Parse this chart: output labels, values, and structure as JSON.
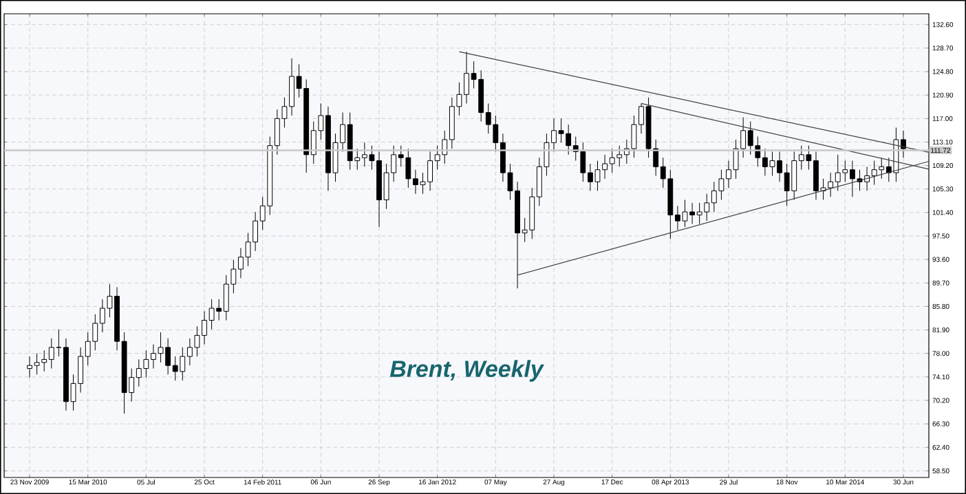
{
  "chart_data": {
    "type": "candlestick",
    "title": "Brent, Weekly",
    "x": [
      "2009-11-23",
      "2009-12-07",
      "2009-12-21",
      "2010-01-04",
      "2010-01-18",
      "2010-02-01",
      "2010-02-15",
      "2010-03-01",
      "2010-03-15",
      "2010-03-29",
      "2010-04-12",
      "2010-04-26",
      "2010-05-10",
      "2010-05-24",
      "2010-06-07",
      "2010-06-21",
      "2010-07-05",
      "2010-07-19",
      "2010-08-02",
      "2010-08-16",
      "2010-08-30",
      "2010-09-13",
      "2010-09-27",
      "2010-10-11",
      "2010-10-25",
      "2010-11-08",
      "2010-11-22",
      "2010-12-06",
      "2010-12-20",
      "2011-01-03",
      "2011-01-17",
      "2011-01-31",
      "2011-02-14",
      "2011-02-28",
      "2011-03-14",
      "2011-03-28",
      "2011-04-11",
      "2011-04-25",
      "2011-05-09",
      "2011-05-23",
      "2011-06-06",
      "2011-06-20",
      "2011-07-04",
      "2011-07-18",
      "2011-08-01",
      "2011-08-15",
      "2011-08-29",
      "2011-09-12",
      "2011-09-26",
      "2011-10-10",
      "2011-10-24",
      "2011-11-07",
      "2011-11-21",
      "2011-12-05",
      "2011-12-19",
      "2012-01-02",
      "2012-01-16",
      "2012-01-30",
      "2012-02-13",
      "2012-02-27",
      "2012-03-12",
      "2012-03-26",
      "2012-04-09",
      "2012-04-23",
      "2012-05-07",
      "2012-05-21",
      "2012-06-04",
      "2012-06-18",
      "2012-07-02",
      "2012-07-16",
      "2012-07-30",
      "2012-08-13",
      "2012-08-27",
      "2012-09-10",
      "2012-09-24",
      "2012-10-08",
      "2012-10-22",
      "2012-11-05",
      "2012-11-19",
      "2012-12-03",
      "2012-12-17",
      "2012-12-31",
      "2013-01-14",
      "2013-01-28",
      "2013-02-11",
      "2013-02-25",
      "2013-03-11",
      "2013-03-25",
      "2013-04-08",
      "2013-04-22",
      "2013-05-06",
      "2013-05-20",
      "2013-06-03",
      "2013-06-17",
      "2013-07-01",
      "2013-07-15",
      "2013-07-29",
      "2013-08-12",
      "2013-08-26",
      "2013-09-09",
      "2013-09-23",
      "2013-10-07",
      "2013-10-21",
      "2013-11-04",
      "2013-11-18",
      "2013-12-02",
      "2013-12-16",
      "2013-12-30",
      "2014-01-13",
      "2014-01-27",
      "2014-02-10",
      "2014-02-24",
      "2014-03-10",
      "2014-03-24",
      "2014-04-07",
      "2014-04-21",
      "2014-05-05",
      "2014-05-19",
      "2014-06-02",
      "2014-06-16",
      "2014-06-30"
    ],
    "ohlc": [
      [
        75.5,
        77.5,
        74,
        76
      ],
      [
        76,
        78,
        74.5,
        76.5
      ],
      [
        76.5,
        78.5,
        75,
        77
      ],
      [
        77,
        80.5,
        75.5,
        79
      ],
      [
        79,
        82,
        77.5,
        79
      ],
      [
        79,
        80.5,
        68.5,
        70
      ],
      [
        70,
        74.5,
        68.5,
        73
      ],
      [
        73,
        79,
        71.5,
        77.5
      ],
      [
        77.5,
        81.5,
        76,
        80
      ],
      [
        80,
        84.5,
        78.5,
        83
      ],
      [
        83,
        87,
        81.5,
        85.5
      ],
      [
        85.5,
        89.5,
        84,
        87.5
      ],
      [
        87.5,
        89,
        78.5,
        80
      ],
      [
        80,
        81.5,
        68,
        71.5
      ],
      [
        71.5,
        75.5,
        70,
        74
      ],
      [
        74,
        77,
        72.5,
        75.5
      ],
      [
        75.5,
        78.5,
        74,
        77
      ],
      [
        77,
        79.5,
        75.5,
        78
      ],
      [
        78,
        81.5,
        76.5,
        79
      ],
      [
        79,
        80.5,
        74.5,
        76
      ],
      [
        76,
        77.5,
        73.5,
        75
      ],
      [
        75,
        79,
        73.5,
        77.5
      ],
      [
        77.5,
        80.5,
        76,
        79
      ],
      [
        79,
        82.5,
        77.5,
        81
      ],
      [
        81,
        85,
        79.5,
        83.5
      ],
      [
        83.5,
        87,
        82,
        85.5
      ],
      [
        85.5,
        87,
        83.5,
        85
      ],
      [
        85,
        91,
        83.5,
        89.5
      ],
      [
        89.5,
        93.5,
        88,
        92
      ],
      [
        92,
        95.5,
        90.5,
        94
      ],
      [
        94,
        98,
        92.5,
        96.5
      ],
      [
        96.5,
        101.5,
        95,
        100
      ],
      [
        100,
        104,
        98.5,
        102.5
      ],
      [
        102.5,
        114,
        101,
        112.5
      ],
      [
        112.5,
        118.5,
        111,
        117
      ],
      [
        117,
        120.5,
        115.5,
        119
      ],
      [
        119,
        127,
        117.5,
        124
      ],
      [
        124,
        126,
        120.5,
        122
      ],
      [
        122,
        123.5,
        108,
        111
      ],
      [
        111,
        116.5,
        109.5,
        115
      ],
      [
        115,
        119.5,
        113.5,
        117.5
      ],
      [
        117.5,
        119,
        105,
        108
      ],
      [
        108,
        114.5,
        106.5,
        113
      ],
      [
        113,
        118,
        111.5,
        116
      ],
      [
        116,
        118,
        108.5,
        110
      ],
      [
        110,
        112,
        108.5,
        110.5
      ],
      [
        110.5,
        113,
        109,
        111
      ],
      [
        111,
        112.5,
        108.5,
        110
      ],
      [
        110,
        111.5,
        99,
        103.5
      ],
      [
        103.5,
        109.5,
        102,
        108
      ],
      [
        108,
        112.5,
        106.5,
        111
      ],
      [
        111,
        112.5,
        109,
        110.5
      ],
      [
        110.5,
        112,
        105.5,
        107
      ],
      [
        107,
        108.5,
        104.5,
        106
      ],
      [
        106,
        108,
        104.5,
        106.5
      ],
      [
        106.5,
        111.5,
        105,
        110
      ],
      [
        110,
        112.5,
        108.5,
        111
      ],
      [
        111,
        115,
        109.5,
        113.5
      ],
      [
        113.5,
        120.5,
        112,
        119
      ],
      [
        119,
        123,
        117.5,
        121
      ],
      [
        121,
        128.1,
        119.5,
        124.5
      ],
      [
        124.5,
        126.5,
        122,
        123.5
      ],
      [
        123.5,
        125,
        116.5,
        118
      ],
      [
        118,
        119.5,
        114.5,
        116
      ],
      [
        116,
        117.5,
        111.5,
        113
      ],
      [
        113,
        114.5,
        106.5,
        108
      ],
      [
        108,
        109.5,
        103.5,
        105
      ],
      [
        105,
        106.5,
        88.8,
        98
      ],
      [
        98,
        100.5,
        96.5,
        98.5
      ],
      [
        98.5,
        105.5,
        97,
        104
      ],
      [
        104,
        110.5,
        102.5,
        109
      ],
      [
        109,
        114.5,
        107.5,
        113
      ],
      [
        113,
        117,
        111.5,
        115
      ],
      [
        115,
        117,
        113,
        114.5
      ],
      [
        114.5,
        116,
        111,
        112.5
      ],
      [
        112.5,
        114,
        110,
        111.5
      ],
      [
        111.5,
        113,
        106.5,
        108
      ],
      [
        108,
        109.5,
        105,
        106.5
      ],
      [
        106.5,
        110,
        105,
        108.5
      ],
      [
        108.5,
        111,
        107,
        109.5
      ],
      [
        109.5,
        112,
        108,
        110.5
      ],
      [
        110.5,
        112.5,
        109,
        111
      ],
      [
        111,
        113.5,
        109.5,
        112
      ],
      [
        112,
        117.5,
        110.5,
        116
      ],
      [
        116,
        119.5,
        114.5,
        119
      ],
      [
        119,
        120.5,
        110.5,
        112
      ],
      [
        112,
        113.5,
        107.5,
        109
      ],
      [
        109,
        110.5,
        105.5,
        107
      ],
      [
        107,
        108.5,
        97,
        101
      ],
      [
        101,
        102.5,
        98.5,
        100
      ],
      [
        100,
        103.5,
        99,
        101.5
      ],
      [
        101.5,
        103,
        99.5,
        101
      ],
      [
        101,
        103,
        99.5,
        101.5
      ],
      [
        101.5,
        104.5,
        100,
        103
      ],
      [
        103,
        106.5,
        101.5,
        105
      ],
      [
        105,
        108.5,
        103.5,
        107
      ],
      [
        107,
        110,
        105.5,
        108.5
      ],
      [
        108.5,
        113.5,
        107,
        112
      ],
      [
        112,
        117.2,
        110.5,
        115
      ],
      [
        115,
        116.5,
        111,
        112.5
      ],
      [
        112.5,
        114,
        109,
        110.5
      ],
      [
        110.5,
        112,
        107.5,
        109
      ],
      [
        109,
        111.5,
        107.5,
        110
      ],
      [
        110,
        111.5,
        106.5,
        108
      ],
      [
        108,
        109.5,
        102.5,
        105
      ],
      [
        105,
        111.5,
        103.5,
        110
      ],
      [
        110,
        112.5,
        108.5,
        111
      ],
      [
        111,
        112.5,
        108.5,
        110
      ],
      [
        110,
        111.5,
        103.5,
        105
      ],
      [
        105,
        107,
        103.5,
        105.5
      ],
      [
        105.5,
        108,
        104,
        106.5
      ],
      [
        106.5,
        111,
        105,
        108
      ],
      [
        108,
        110,
        106.5,
        108.5
      ],
      [
        108.5,
        110,
        104,
        107
      ],
      [
        107,
        108.5,
        105,
        106.5
      ],
      [
        106.5,
        109,
        105,
        107.5
      ],
      [
        107.5,
        110,
        106,
        108.5
      ],
      [
        108.5,
        110.5,
        107,
        109
      ],
      [
        109,
        110.5,
        106.5,
        108
      ],
      [
        108,
        115.5,
        106.5,
        113.5
      ],
      [
        113.5,
        115,
        110.5,
        112
      ]
    ],
    "series": [
      {
        "type": "line",
        "color": "#404040",
        "x": [
          "2012-02-27",
          "2014-08-18"
        ],
        "values": [
          128.1,
          111.4
        ]
      },
      {
        "type": "line",
        "color": "#404040",
        "x": [
          "2013-02-11",
          "2014-08-18"
        ],
        "values": [
          119.5,
          108.6
        ]
      },
      {
        "type": "line",
        "color": "#404040",
        "x": [
          "2012-06-18",
          "2014-08-18"
        ],
        "values": [
          91.0,
          109.9
        ]
      }
    ],
    "ref_lines": [
      {
        "axis": "y",
        "value": 111.72,
        "label": "111.72",
        "color": "#c8c8c8"
      }
    ],
    "xlim": [
      "2009-10-05",
      "2014-08-18"
    ],
    "xticks": [
      {
        "value": "2009-11-23",
        "label": "23 Nov 2009"
      },
      {
        "value": "2010-03-15",
        "label": "15 Mar 2010"
      },
      {
        "value": "2010-07-05",
        "label": "05 Jul"
      },
      {
        "value": "2010-10-25",
        "label": "25 Oct"
      },
      {
        "value": "2011-02-14",
        "label": "14 Feb 2011"
      },
      {
        "value": "2011-06-06",
        "label": "06 Jun"
      },
      {
        "value": "2011-09-26",
        "label": "26 Sep"
      },
      {
        "value": "2012-01-16",
        "label": "16 Jan 2012"
      },
      {
        "value": "2012-05-07",
        "label": "07 May"
      },
      {
        "value": "2012-08-27",
        "label": "27 Aug"
      },
      {
        "value": "2012-12-17",
        "label": "17 Dec"
      },
      {
        "value": "2013-04-08",
        "label": "08 Apr 2013"
      },
      {
        "value": "2013-07-29",
        "label": "29 Jul"
      },
      {
        "value": "2013-11-18",
        "label": "18 Nov"
      },
      {
        "value": "2014-03-10",
        "label": "10 Mar 2014"
      },
      {
        "value": "2014-06-30",
        "label": "30 Jun"
      }
    ],
    "ylim": [
      57.4,
      134.4
    ],
    "yticks": [
      {
        "value": 58.5,
        "label": "58.50"
      },
      {
        "value": 62.4,
        "label": "62.40"
      },
      {
        "value": 66.3,
        "label": "66.30"
      },
      {
        "value": 70.2,
        "label": "70.20"
      },
      {
        "value": 74.1,
        "label": "74.10"
      },
      {
        "value": 78.0,
        "label": "78.00"
      },
      {
        "value": 81.9,
        "label": "81.90"
      },
      {
        "value": 85.8,
        "label": "85.80"
      },
      {
        "value": 89.7,
        "label": "89.70"
      },
      {
        "value": 93.6,
        "label": "93.60"
      },
      {
        "value": 97.5,
        "label": "97.50"
      },
      {
        "value": 101.4,
        "label": "101.40"
      },
      {
        "value": 105.3,
        "label": "105.30"
      },
      {
        "value": 109.2,
        "label": "109.20"
      },
      {
        "value": 113.1,
        "label": "113.10"
      },
      {
        "value": 117.0,
        "label": "117.00"
      },
      {
        "value": 120.9,
        "label": "120.90"
      },
      {
        "value": 124.8,
        "label": "124.80"
      },
      {
        "value": 128.7,
        "label": "128.70"
      },
      {
        "value": 132.6,
        "label": "132.60"
      }
    ],
    "grid": true
  }
}
